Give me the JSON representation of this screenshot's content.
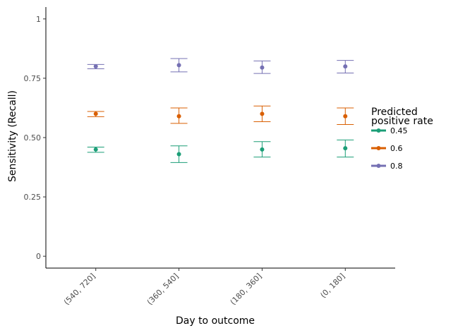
{
  "chart_data": {
    "type": "scatter",
    "title": "",
    "xlabel": "Day to outcome",
    "ylabel": "Sensitivity (Recall)",
    "categories": [
      "(540, 720]",
      "(360, 540]",
      "(180, 360]",
      "(0, 180]"
    ],
    "yticks": [
      0,
      0.25,
      0.5,
      0.75,
      1
    ],
    "ytick_labels": [
      "0",
      "0.25",
      "0.50",
      "0.75",
      "1"
    ],
    "ylim": [
      -0.05,
      1.05
    ],
    "grid": false,
    "legend": {
      "title": "Predicted\npositive rate",
      "placement": "right"
    },
    "series": [
      {
        "name": "0.45",
        "color": "#1b9e77",
        "values": [
          0.45,
          0.43,
          0.45,
          0.455
        ],
        "lower": [
          0.438,
          0.395,
          0.418,
          0.418
        ],
        "upper": [
          0.46,
          0.465,
          0.483,
          0.49
        ]
      },
      {
        "name": "0.6",
        "color": "#d95f02",
        "values": [
          0.6,
          0.59,
          0.6,
          0.59
        ],
        "lower": [
          0.588,
          0.56,
          0.567,
          0.555
        ],
        "upper": [
          0.61,
          0.625,
          0.633,
          0.625
        ]
      },
      {
        "name": "0.8",
        "color": "#7570b3",
        "values": [
          0.8,
          0.805,
          0.795,
          0.8
        ],
        "lower": [
          0.79,
          0.777,
          0.77,
          0.772
        ],
        "upper": [
          0.808,
          0.833,
          0.823,
          0.825
        ]
      }
    ]
  }
}
